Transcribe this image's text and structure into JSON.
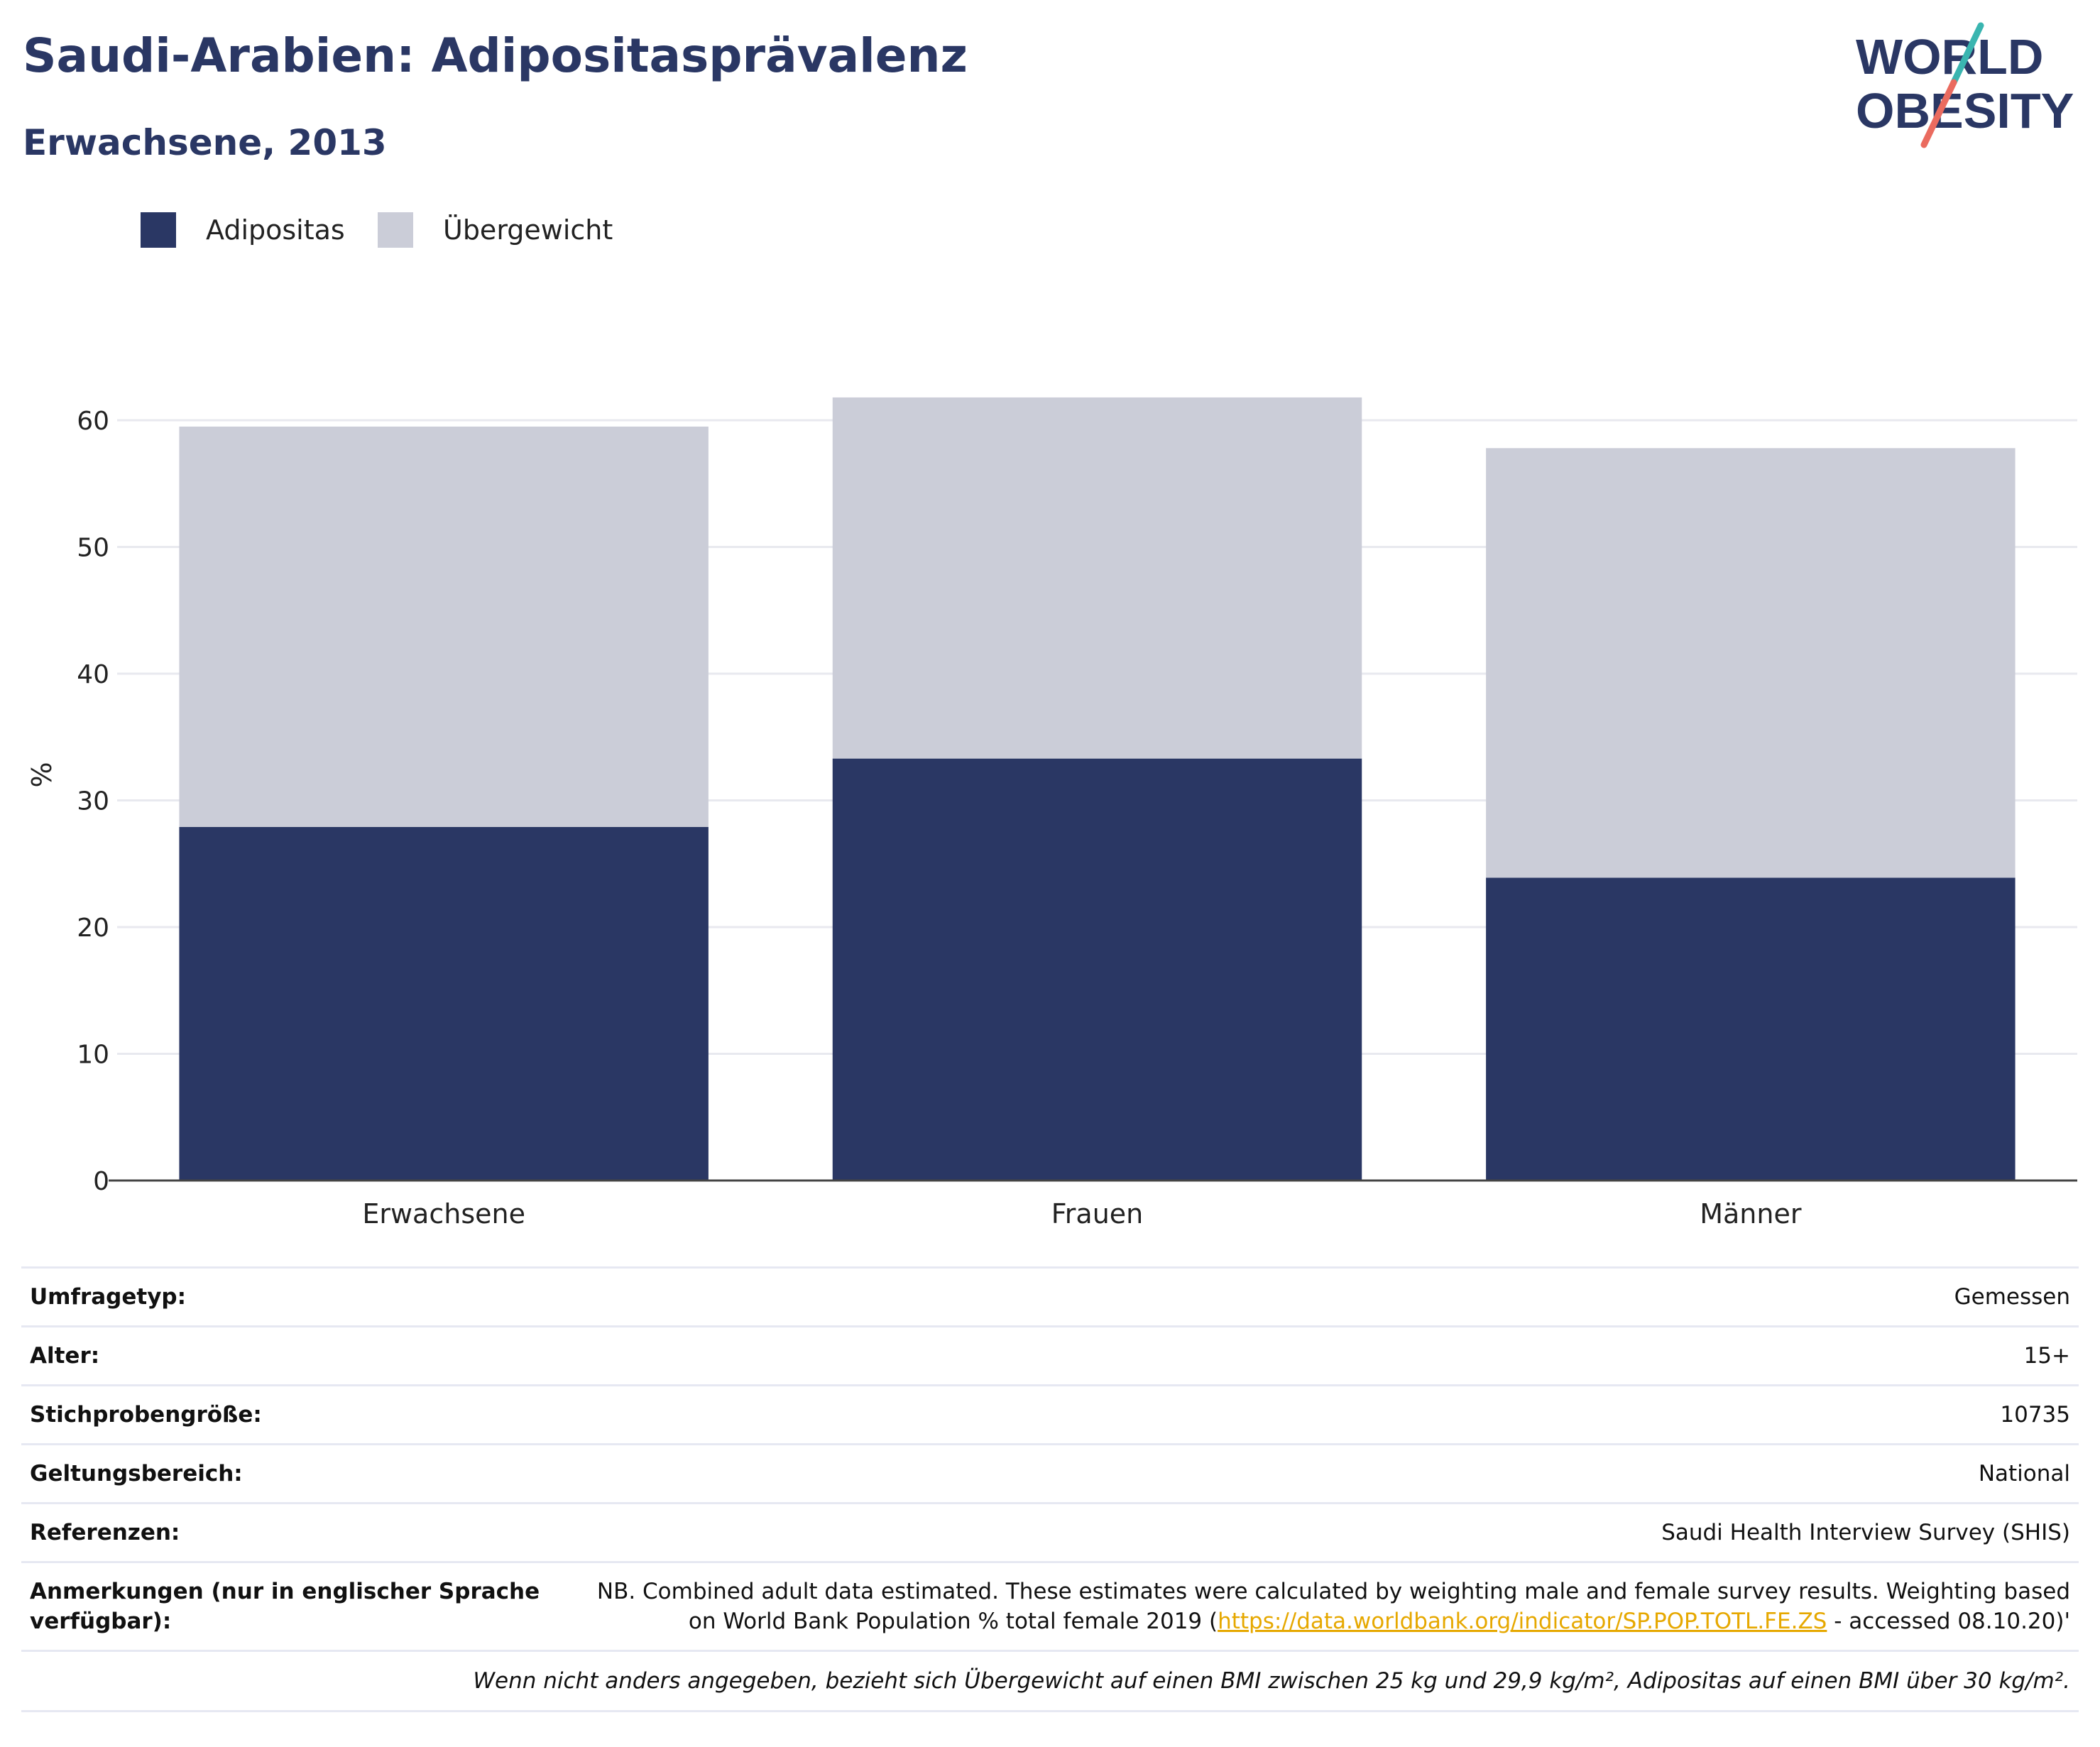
{
  "title": "Saudi-Arabien: Adipositasprävalenz",
  "subtitle": "Erwachsene, 2013",
  "logo": {
    "line1": "WORLD",
    "line2": "OBESITY"
  },
  "colors": {
    "adipositas": "#2a3764",
    "uebergewicht": "#cbcdd8",
    "title": "#2a3764",
    "grid": "#e8e9ef",
    "axis": "#444444",
    "link": "#e6a800",
    "logo_teal": "#3ab5b0",
    "logo_red": "#ea6b5f"
  },
  "legend": [
    {
      "label": "Adipositas",
      "color": "#2a3764"
    },
    {
      "label": "Übergewicht",
      "color": "#cbcdd8"
    }
  ],
  "chart_data": {
    "type": "bar",
    "stacked": true,
    "categories": [
      "Erwachsene",
      "Frauen",
      "Männer"
    ],
    "series": [
      {
        "name": "Adipositas",
        "values": [
          27.9,
          33.3,
          23.9
        ]
      },
      {
        "name": "Übergewicht",
        "values": [
          31.6,
          28.5,
          33.9
        ]
      }
    ],
    "ylabel": "%",
    "ylim": [
      0,
      65
    ],
    "yticks": [
      0,
      10,
      20,
      30,
      40,
      50,
      60
    ],
    "grid": true,
    "legend_position": "top-left"
  },
  "info": {
    "umfragetyp": {
      "label": "Umfragetyp:",
      "value": "Gemessen"
    },
    "alter": {
      "label": "Alter:",
      "value": "15+"
    },
    "stichprobe": {
      "label": "Stichprobengröße:",
      "value": "10735"
    },
    "geltung": {
      "label": "Geltungsbereich:",
      "value": "National"
    },
    "referenzen": {
      "label": "Referenzen:",
      "value": "Saudi Health Interview Survey (SHIS)"
    },
    "anmerkungen": {
      "label": "Anmerkungen (nur in englischer Sprache verfügbar):",
      "text_line1": "NB. Combined adult data estimated. These estimates were calculated by weighting male and female survey results. Weighting based",
      "text_pre": "on World Bank Population % total female 2019 (",
      "link": "https://data.worldbank.org/indicator/SP.POP.TOTL.FE.ZS",
      "text_post": " - accessed 08.10.20)'"
    },
    "footnote": "Wenn nicht anders angegeben, bezieht sich Übergewicht auf einen BMI zwischen 25 kg und 29,9 kg/m², Adipositas auf einen BMI über 30 kg/m²."
  }
}
